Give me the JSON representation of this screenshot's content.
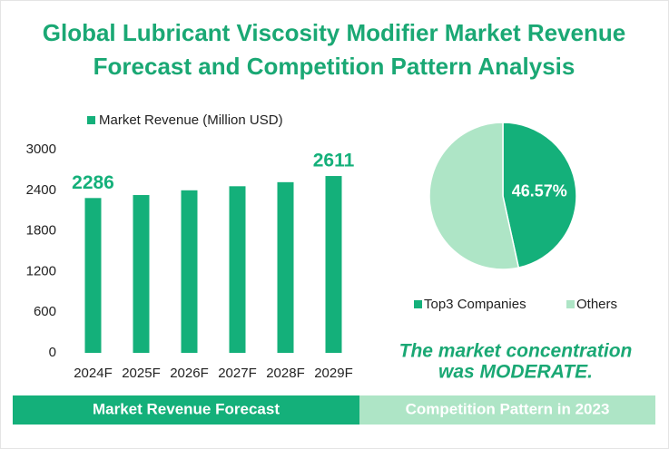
{
  "title": [
    "Global Lubricant Viscosity Modifier Market Revenue",
    "Forecast and Competition Pattern Analysis"
  ],
  "note": [
    "The market concentration",
    "was MODERATE."
  ],
  "footer": [
    "Market Revenue Forecast",
    "Competition Pattern in 2023"
  ],
  "chart_data": [
    {
      "type": "bar",
      "categories": [
        "2024F",
        "2025F",
        "2026F",
        "2027F",
        "2028F",
        "2029F"
      ],
      "series": [
        {
          "name": "Market Revenue (Million USD)",
          "color": "#14b07a",
          "values": [
            2286,
            2330,
            2400,
            2460,
            2520,
            2611
          ],
          "value_labels": [
            "2286",
            null,
            null,
            null,
            null,
            "2611"
          ]
        }
      ],
      "ylim": [
        0,
        3000
      ],
      "yticks": [
        0,
        600,
        1200,
        1800,
        2400,
        3000
      ],
      "grid": false
    },
    {
      "type": "pie",
      "categories": [
        "Top3 Companies",
        "Others"
      ],
      "values": [
        46.57,
        53.43
      ],
      "value_labels": [
        "46.57%",
        null
      ],
      "colors": [
        "#14b07a",
        "#aee5c6"
      ]
    }
  ]
}
